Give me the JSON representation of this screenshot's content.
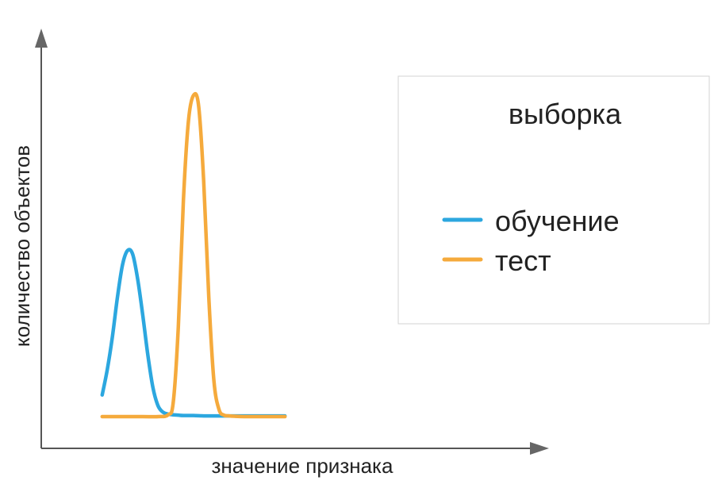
{
  "chart_data": {
    "type": "line",
    "title": "",
    "xlabel": "значение признака",
    "ylabel": "количество объектов",
    "xlim": [
      0,
      100
    ],
    "ylim": [
      0,
      100
    ],
    "grid": false,
    "ticks": false,
    "legend": {
      "title": "выборка",
      "placement": "right"
    },
    "series": [
      {
        "name": "обучение",
        "color": "#2ca7df",
        "x": [
          12,
          13,
          14,
          15,
          16,
          17,
          18,
          19,
          20,
          21,
          22,
          23,
          24,
          25,
          26,
          27,
          28,
          30,
          32,
          34,
          36,
          38,
          40,
          42,
          44,
          46,
          48
        ],
        "y": [
          6,
          13,
          22,
          33,
          42,
          46,
          45,
          38,
          28,
          17,
          8,
          3,
          1.2,
          0.7,
          0.5,
          0.4,
          0.3,
          0.3,
          0.2,
          0.2,
          0.2,
          0.2,
          0.2,
          0.2,
          0.2,
          0.2,
          0.2
        ]
      },
      {
        "name": "тест",
        "color": "#f5aa3c",
        "x": [
          12,
          16,
          20,
          23,
          25,
          26,
          27,
          28,
          29,
          30,
          31,
          32,
          33,
          34,
          35,
          36,
          37,
          38,
          40,
          44,
          48
        ],
        "y": [
          0,
          0,
          0,
          0,
          0.5,
          4,
          25,
          60,
          82,
          89,
          86,
          65,
          33,
          10,
          2,
          0.4,
          0.2,
          0.1,
          0,
          0,
          0
        ]
      }
    ]
  }
}
